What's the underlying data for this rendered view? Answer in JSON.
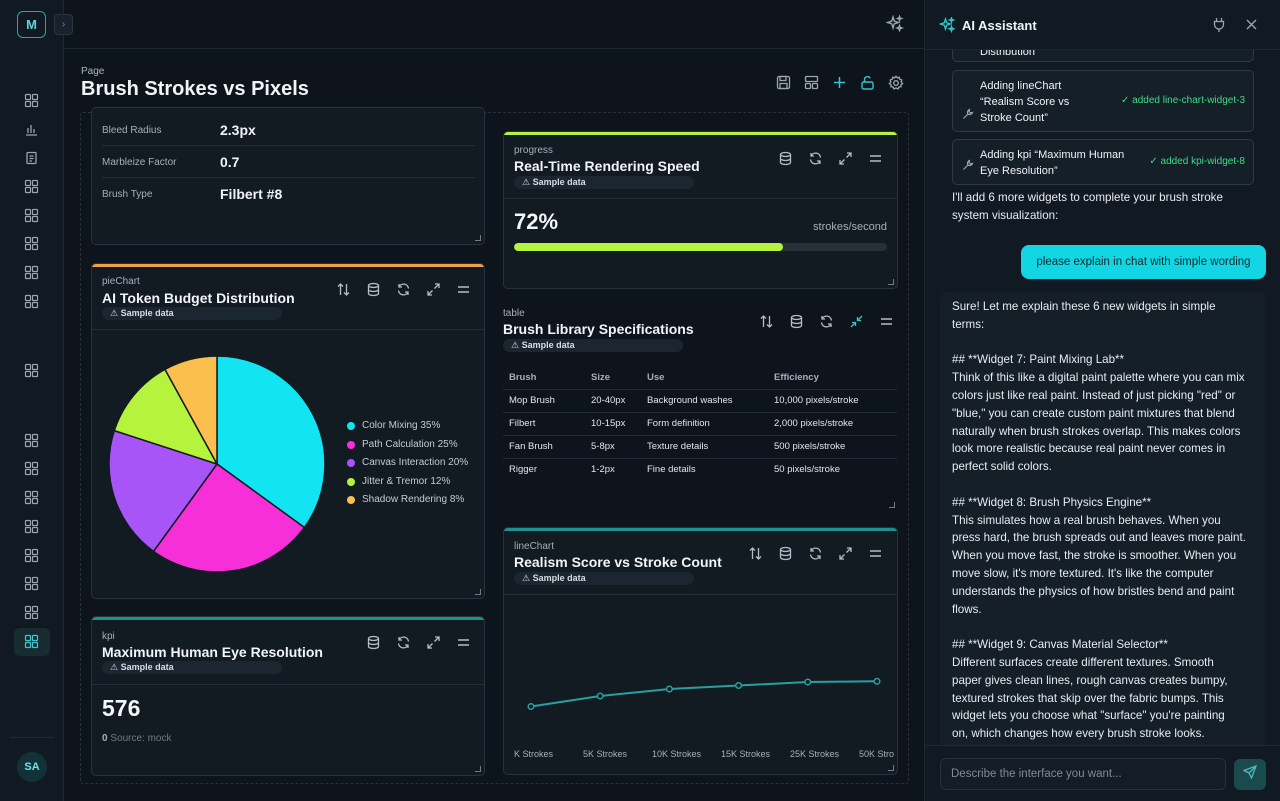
{
  "app": {
    "logo_letter": "M",
    "user_initials": "SA"
  },
  "page": {
    "label": "Page",
    "title": "Brush Strokes vs Pixels"
  },
  "details_card": {
    "rows": [
      {
        "key": "Bleed Radius",
        "value": "2.3px"
      },
      {
        "key": "Marbleize Factor",
        "value": "0.7"
      },
      {
        "key": "Brush Type",
        "value": "Filbert #8"
      }
    ]
  },
  "pie_card": {
    "type_label": "pieChart",
    "title": "AI Token Budget Distribution",
    "badge": "⚠ Sample data",
    "accent": "#f0a04b"
  },
  "kpi_card": {
    "type_label": "kpi",
    "title": "Maximum Human Eye Resolution",
    "badge": "⚠ Sample data",
    "value": "576",
    "sub_value": "0",
    "sub_text": "Source: mock",
    "accent": "#1f8f8f"
  },
  "progress_card": {
    "type_label": "progress",
    "title": "Real-Time Rendering Speed",
    "badge": "⚠ Sample data",
    "value_text": "72%",
    "fraction": 0.72,
    "unit": "strokes/second",
    "accent": "#b6f33c"
  },
  "table_card": {
    "type_label": "table",
    "title": "Brush Library Specifications",
    "badge": "⚠ Sample data",
    "columns": [
      "Brush",
      "Size",
      "Use",
      "Efficiency"
    ],
    "rows": [
      [
        "Mop Brush",
        "20-40px",
        "Background washes",
        "10,000 pixels/stroke"
      ],
      [
        "Filbert",
        "10-15px",
        "Form definition",
        "2,000 pixels/stroke"
      ],
      [
        "Fan Brush",
        "5-8px",
        "Texture details",
        "500 pixels/stroke"
      ],
      [
        "Rigger",
        "1-2px",
        "Fine details",
        "50 pixels/stroke"
      ]
    ]
  },
  "line_card": {
    "type_label": "lineChart",
    "title": "Realism Score vs Stroke Count",
    "badge": "⚠ Sample data",
    "accent": "#1f8f8f"
  },
  "chart_data": [
    {
      "type": "pie",
      "title": "AI Token Budget Distribution",
      "labels": [
        "Color Mixing 35%",
        "Path Calculation 25%",
        "Canvas Interaction 20%",
        "Jitter & Tremor 12%",
        "Shadow Rendering 8%"
      ],
      "values": [
        35,
        25,
        20,
        12,
        8
      ],
      "colors": [
        "#12e4f2",
        "#f72fd8",
        "#a855f7",
        "#b6f33c",
        "#fbbf4e"
      ],
      "legend": "right"
    },
    {
      "type": "line",
      "title": "Realism Score vs Stroke Count",
      "categories": [
        "K Strokes",
        "5K Strokes",
        "10K Strokes",
        "15K Strokes",
        "25K Strokes",
        "50K Stro"
      ],
      "series": [
        {
          "values": [
            45,
            60,
            70,
            75,
            80,
            81
          ],
          "color": "#27a0a0"
        }
      ],
      "ylim": [
        0,
        200
      ],
      "grid": false
    }
  ],
  "assistant": {
    "title": "AI Assistant",
    "partial_top": "Distribution",
    "steps": [
      {
        "text": "Adding lineChart\n“Realism Score vs\nStroke Count”",
        "status": "✓ added line-chart-widget-3"
      },
      {
        "text": "Adding kpi “Maximum Human\nEye Resolution”",
        "status": "✓ added kpi-widget-8"
      }
    ],
    "ai_msg_1": "I'll add 6 more widgets to complete your brush stroke\nsystem visualization:",
    "user_msg": "please explain in chat with simple wording",
    "ai_msg_2": "Sure! Let me explain these 6 new widgets in simple\nterms:\n\n## **Widget 7: Paint Mixing Lab**\nThink of this like a digital paint palette where you can mix\ncolors just like real paint. Instead of just picking \"red\" or\n\"blue,\" you can create custom paint mixtures that blend\nnaturally when brush strokes overlap. This makes colors\nlook more realistic because real paint never comes in\nperfect solid colors.\n\n## **Widget 8: Brush Physics Engine**\nThis simulates how a real brush behaves. When you\npress hard, the brush spreads out and leaves more paint.\nWhen you move fast, the stroke is smoother. When you\nmove slow, it's more textured. It's like the computer\nunderstands the physics of how bristles bend and paint\nflows.\n\n## **Widget 9: Canvas Material Selector**\nDifferent surfaces create different textures. Smooth\npaper gives clean lines, rough canvas creates bumpy,\ntextured strokes that skip over the fabric bumps. This\nwidget lets you choose what \"surface\" you're painting\non, which changes how every brush stroke looks.",
    "input_placeholder": "Describe the interface you want..."
  }
}
